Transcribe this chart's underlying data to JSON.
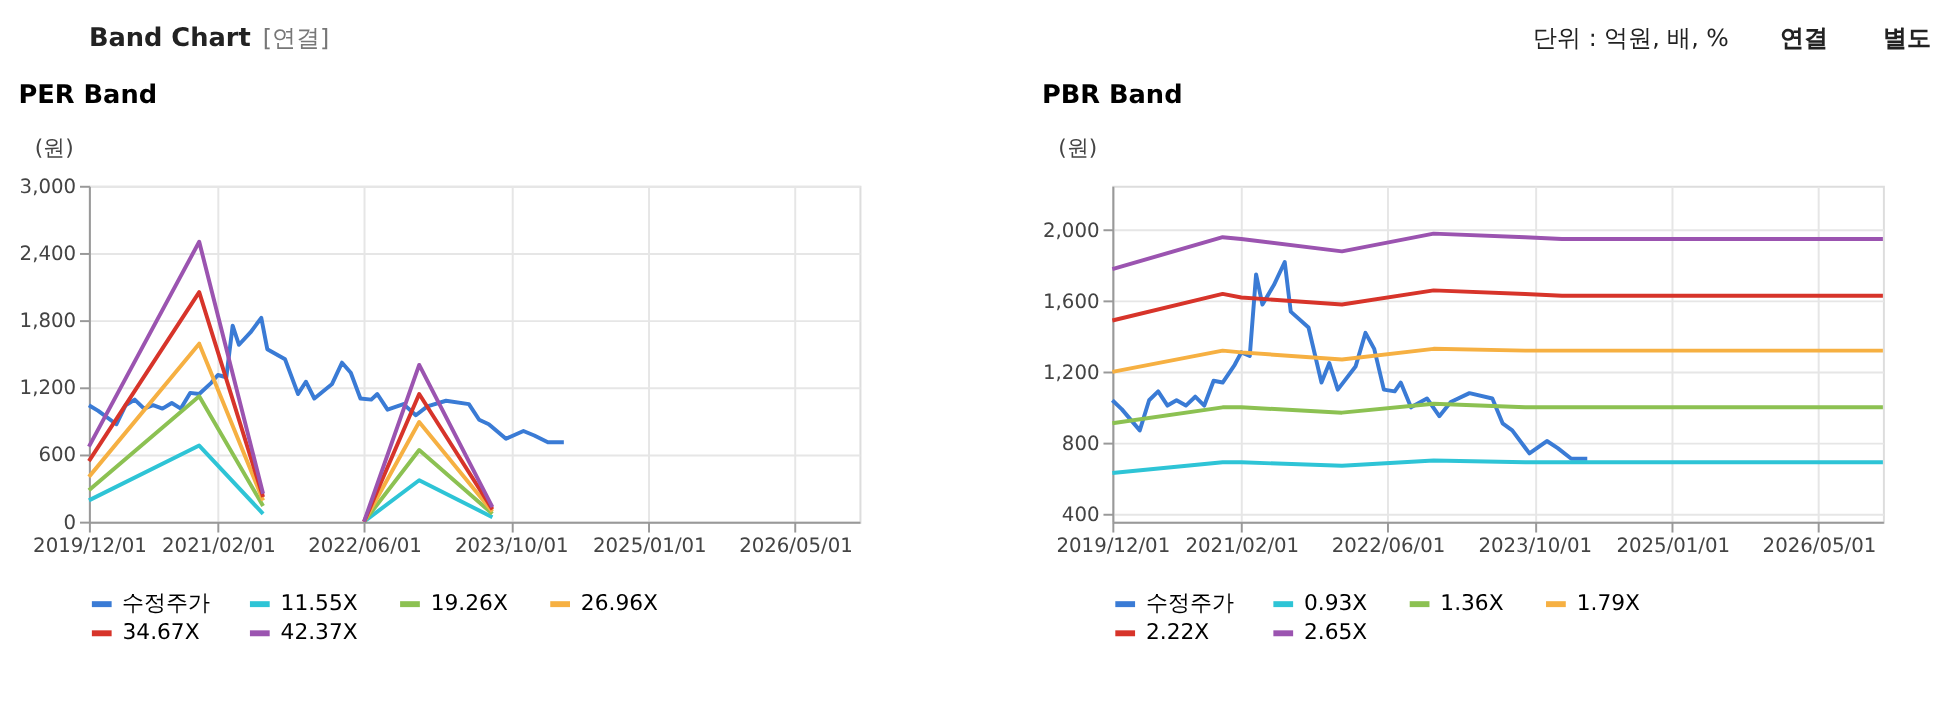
{
  "chart_data": [
    {
      "type": "line",
      "title": "PER Band",
      "ylabel": "(원)",
      "legend": "bottom",
      "grid": true,
      "annotations": [
        "Band Chart",
        "[연결]",
        "단위 : 억원, 배, %",
        "연결",
        "별도"
      ],
      "xlim": [
        "2019-12-01",
        "2026-12-01"
      ],
      "xticks": [
        {
          "value": "2019-12-01",
          "label": "2019/12/01"
        },
        {
          "value": "2021-02-01",
          "label": "2021/02/01"
        },
        {
          "value": "2022-06-01",
          "label": "2022/06/01"
        },
        {
          "value": "2023-10-01",
          "label": "2023/10/01"
        },
        {
          "value": "2025-01-01",
          "label": "2025/01/01"
        },
        {
          "value": "2026-05-01",
          "label": "2026/05/01"
        }
      ],
      "ylim": [
        0,
        3000
      ],
      "yticks": [
        0,
        600,
        {
          "value": 1200,
          "label": "1,200"
        },
        {
          "value": 1800,
          "label": "1,800"
        },
        {
          "value": 2400,
          "label": "2,400"
        },
        {
          "value": 3000,
          "label": "3,000"
        }
      ],
      "series": [
        {
          "name": "수정주가",
          "color": "#3a7bd5",
          "x": [
            "2019-12-01",
            "2020-01-01",
            "2020-03-01",
            "2020-04-01",
            "2020-05-01",
            "2020-06-01",
            "2020-07-01",
            "2020-08-01",
            "2020-09-01",
            "2020-10-01",
            "2020-11-01",
            "2020-12-01",
            "2021-01-10",
            "2021-02-01",
            "2021-03-01",
            "2021-03-22",
            "2021-04-12",
            "2021-05-20",
            "2021-06-25",
            "2021-07-15",
            "2021-09-12",
            "2021-10-25",
            "2021-11-20",
            "2021-12-18",
            "2022-02-15",
            "2022-03-20",
            "2022-04-18",
            "2022-05-20",
            "2022-06-25",
            "2022-07-15",
            "2022-08-18",
            "2022-10-10",
            "2022-11-20",
            "2022-12-28",
            "2023-02-28",
            "2023-05-15",
            "2023-06-18",
            "2023-07-20",
            "2023-09-15",
            "2023-11-12",
            "2023-12-18",
            "2024-02-01",
            "2024-03-25"
          ],
          "values": [
            1040,
            990,
            870,
            1040,
            1090,
            1010,
            1040,
            1010,
            1060,
            1010,
            1150,
            1140,
            1240,
            1310,
            1290,
            1750,
            1580,
            1690,
            1820,
            1540,
            1450,
            1140,
            1250,
            1100,
            1230,
            1420,
            1330,
            1100,
            1090,
            1140,
            1000,
            1050,
            950,
            1030,
            1080,
            1050,
            910,
            870,
            740,
            810,
            770,
            710,
            710
          ]
        },
        {
          "name": "11.55X",
          "color": "#2ec4d6",
          "x": [
            "2019-12-01",
            "2020-12-01",
            "2021-07-01",
            "2022-01-01",
            "2022-06-01",
            "2022-12-01",
            "2023-08-01"
          ],
          "values": [
            190,
            680,
            70,
            null,
            0,
            370,
            40
          ]
        },
        {
          "name": "19.26X",
          "color": "#8cc152",
          "x": [
            "2019-12-01",
            "2020-12-01",
            "2021-07-01",
            "2022-01-01",
            "2022-06-01",
            "2022-12-01",
            "2023-08-01"
          ],
          "values": [
            280,
            1120,
            140,
            null,
            0,
            640,
            70
          ]
        },
        {
          "name": "26.96X",
          "color": "#f6b042",
          "x": [
            "2019-12-01",
            "2020-12-01",
            "2021-07-01",
            "2022-01-01",
            "2022-06-01",
            "2022-12-01",
            "2023-08-01"
          ],
          "values": [
            400,
            1590,
            190,
            null,
            0,
            890,
            90
          ]
        },
        {
          "name": "34.67X",
          "color": "#d7342a",
          "x": [
            "2019-12-01",
            "2020-12-01",
            "2021-07-01",
            "2022-01-01",
            "2022-06-01",
            "2022-12-01",
            "2023-08-01"
          ],
          "values": [
            540,
            2050,
            220,
            null,
            0,
            1140,
            110
          ]
        },
        {
          "name": "42.37X",
          "color": "#9b54b0",
          "x": [
            "2019-12-01",
            "2020-12-01",
            "2021-07-01",
            "2022-01-01",
            "2022-06-01",
            "2022-12-01",
            "2023-08-01"
          ],
          "values": [
            670,
            2500,
            250,
            null,
            0,
            1400,
            130
          ]
        }
      ]
    },
    {
      "type": "line",
      "title": "PBR Band",
      "ylabel": "(원)",
      "legend": "bottom",
      "grid": true,
      "xlim": [
        "2019-12-01",
        "2026-12-01"
      ],
      "xticks": [
        {
          "value": "2019-12-01",
          "label": "2019/12/01"
        },
        {
          "value": "2021-02-01",
          "label": "2021/02/01"
        },
        {
          "value": "2022-06-01",
          "label": "2022/06/01"
        },
        {
          "value": "2023-10-01",
          "label": "2023/10/01"
        },
        {
          "value": "2025-01-01",
          "label": "2025/01/01"
        },
        {
          "value": "2026-05-01",
          "label": "2026/05/01"
        }
      ],
      "ylim": [
        355,
        2250
      ],
      "yticks": [
        400,
        800,
        {
          "value": 1200,
          "label": "1,200"
        },
        {
          "value": 1600,
          "label": "1,600"
        },
        {
          "value": 2000,
          "label": "2,000"
        }
      ],
      "series": [
        {
          "name": "수정주가",
          "color": "#3a7bd5",
          "x": [
            "2019-12-01",
            "2020-01-01",
            "2020-03-01",
            "2020-04-01",
            "2020-05-01",
            "2020-06-01",
            "2020-07-01",
            "2020-08-01",
            "2020-09-01",
            "2020-10-01",
            "2020-11-01",
            "2020-12-01",
            "2021-01-10",
            "2021-02-01",
            "2021-03-01",
            "2021-03-22",
            "2021-04-12",
            "2021-05-20",
            "2021-06-25",
            "2021-07-15",
            "2021-09-12",
            "2021-10-25",
            "2021-11-20",
            "2021-12-18",
            "2022-02-15",
            "2022-03-20",
            "2022-04-18",
            "2022-05-20",
            "2022-06-25",
            "2022-07-15",
            "2022-08-18",
            "2022-10-10",
            "2022-11-20",
            "2022-12-28",
            "2023-02-28",
            "2023-05-15",
            "2023-06-18",
            "2023-07-20",
            "2023-09-15",
            "2023-11-12",
            "2023-12-18",
            "2024-02-01",
            "2024-03-25"
          ],
          "values": [
            1040,
            990,
            870,
            1040,
            1090,
            1010,
            1040,
            1010,
            1060,
            1010,
            1150,
            1140,
            1240,
            1310,
            1290,
            1750,
            1580,
            1690,
            1820,
            1540,
            1450,
            1140,
            1250,
            1100,
            1230,
            1420,
            1330,
            1100,
            1090,
            1140,
            1000,
            1050,
            950,
            1030,
            1080,
            1050,
            910,
            870,
            740,
            810,
            770,
            710,
            710
          ]
        },
        {
          "name": "0.93X",
          "color": "#2ec4d6",
          "x": [
            "2019-12-01",
            "2020-12-01",
            "2021-02-01",
            "2022-01-01",
            "2022-11-01",
            "2023-09-01",
            "2024-01-01",
            "2026-12-01"
          ],
          "values": [
            630,
            690,
            690,
            670,
            700,
            690,
            690,
            690
          ]
        },
        {
          "name": "1.36X",
          "color": "#8cc152",
          "x": [
            "2019-12-01",
            "2020-12-01",
            "2021-02-01",
            "2022-01-01",
            "2022-11-01",
            "2023-09-01",
            "2024-01-01",
            "2026-12-01"
          ],
          "values": [
            910,
            1000,
            1000,
            970,
            1020,
            1000,
            1000,
            1000
          ]
        },
        {
          "name": "1.79X",
          "color": "#f6b042",
          "x": [
            "2019-12-01",
            "2020-12-01",
            "2021-02-01",
            "2022-01-01",
            "2022-11-01",
            "2023-09-01",
            "2024-01-01",
            "2026-12-01"
          ],
          "values": [
            1200,
            1320,
            1310,
            1270,
            1330,
            1320,
            1320,
            1320
          ]
        },
        {
          "name": "2.22X",
          "color": "#d7342a",
          "x": [
            "2019-12-01",
            "2020-12-01",
            "2021-02-01",
            "2022-01-01",
            "2022-11-01",
            "2023-09-01",
            "2024-01-01",
            "2026-12-01"
          ],
          "values": [
            1490,
            1640,
            1620,
            1580,
            1660,
            1640,
            1630,
            1630
          ]
        },
        {
          "name": "2.65X",
          "color": "#9b54b0",
          "x": [
            "2019-12-01",
            "2020-12-01",
            "2021-02-01",
            "2022-01-01",
            "2022-11-01",
            "2023-09-01",
            "2024-01-01",
            "2026-12-01"
          ],
          "values": [
            1780,
            1960,
            1950,
            1880,
            1980,
            1960,
            1950,
            1950
          ]
        }
      ]
    }
  ]
}
